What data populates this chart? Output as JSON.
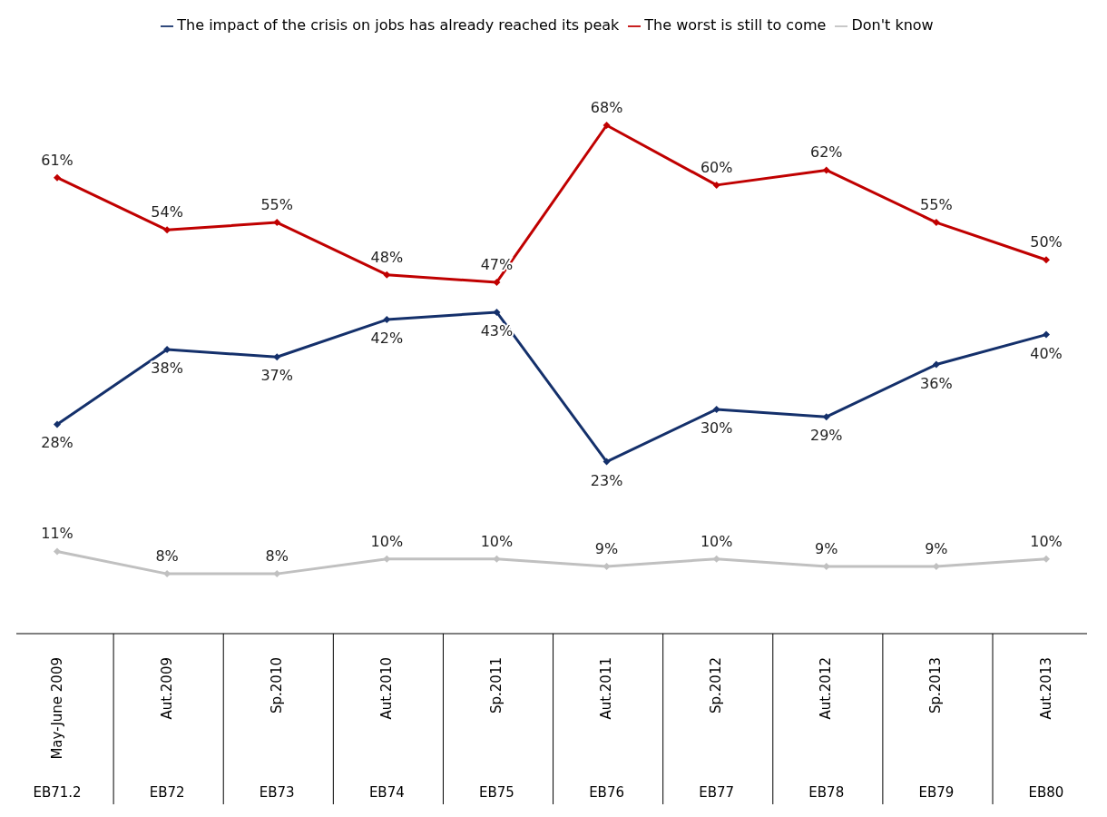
{
  "chart_data": {
    "type": "line",
    "categories": [
      "May-June 2009",
      "Aut.2009",
      "Sp.2010",
      "Aut.2010",
      "Sp.2011",
      "Aut.2011",
      "Sp.2012",
      "Aut.2012",
      "Sp.2013",
      "Aut.2013"
    ],
    "series": [
      {
        "name": "The impact of the crisis on jobs has already reached its peak",
        "color": "#14306b",
        "values": [
          28,
          38,
          37,
          42,
          43,
          23,
          30,
          29,
          36,
          40
        ],
        "value_labels": [
          "28%",
          "38%",
          "37%",
          "42%",
          "43%",
          "23%",
          "30%",
          "29%",
          "36%",
          "40%"
        ]
      },
      {
        "name": "The worst is still to come",
        "color": "#c00000",
        "values": [
          61,
          54,
          55,
          48,
          47,
          68,
          60,
          62,
          55,
          50
        ],
        "value_labels": [
          "61%",
          "54%",
          "55%",
          "48%",
          "47%",
          "68%",
          "60%",
          "62%",
          "55%",
          "50%"
        ]
      },
      {
        "name": "Don't know",
        "color": "#c0c0c0",
        "values": [
          11,
          8,
          8,
          10,
          10,
          9,
          10,
          9,
          9,
          10
        ],
        "value_labels": [
          "11%",
          "8%",
          "8%",
          "10%",
          "10%",
          "9%",
          "10%",
          "9%",
          "9%",
          "10%"
        ]
      }
    ],
    "annotations": [
      "EB71.2",
      "EB72",
      "EB73",
      "EB74",
      "EB75",
      "EB76",
      "EB77",
      "EB78",
      "EB79",
      "EB80"
    ],
    "legend": "top",
    "marker": "diamond",
    "line_style": "solid",
    "grid": false
  }
}
